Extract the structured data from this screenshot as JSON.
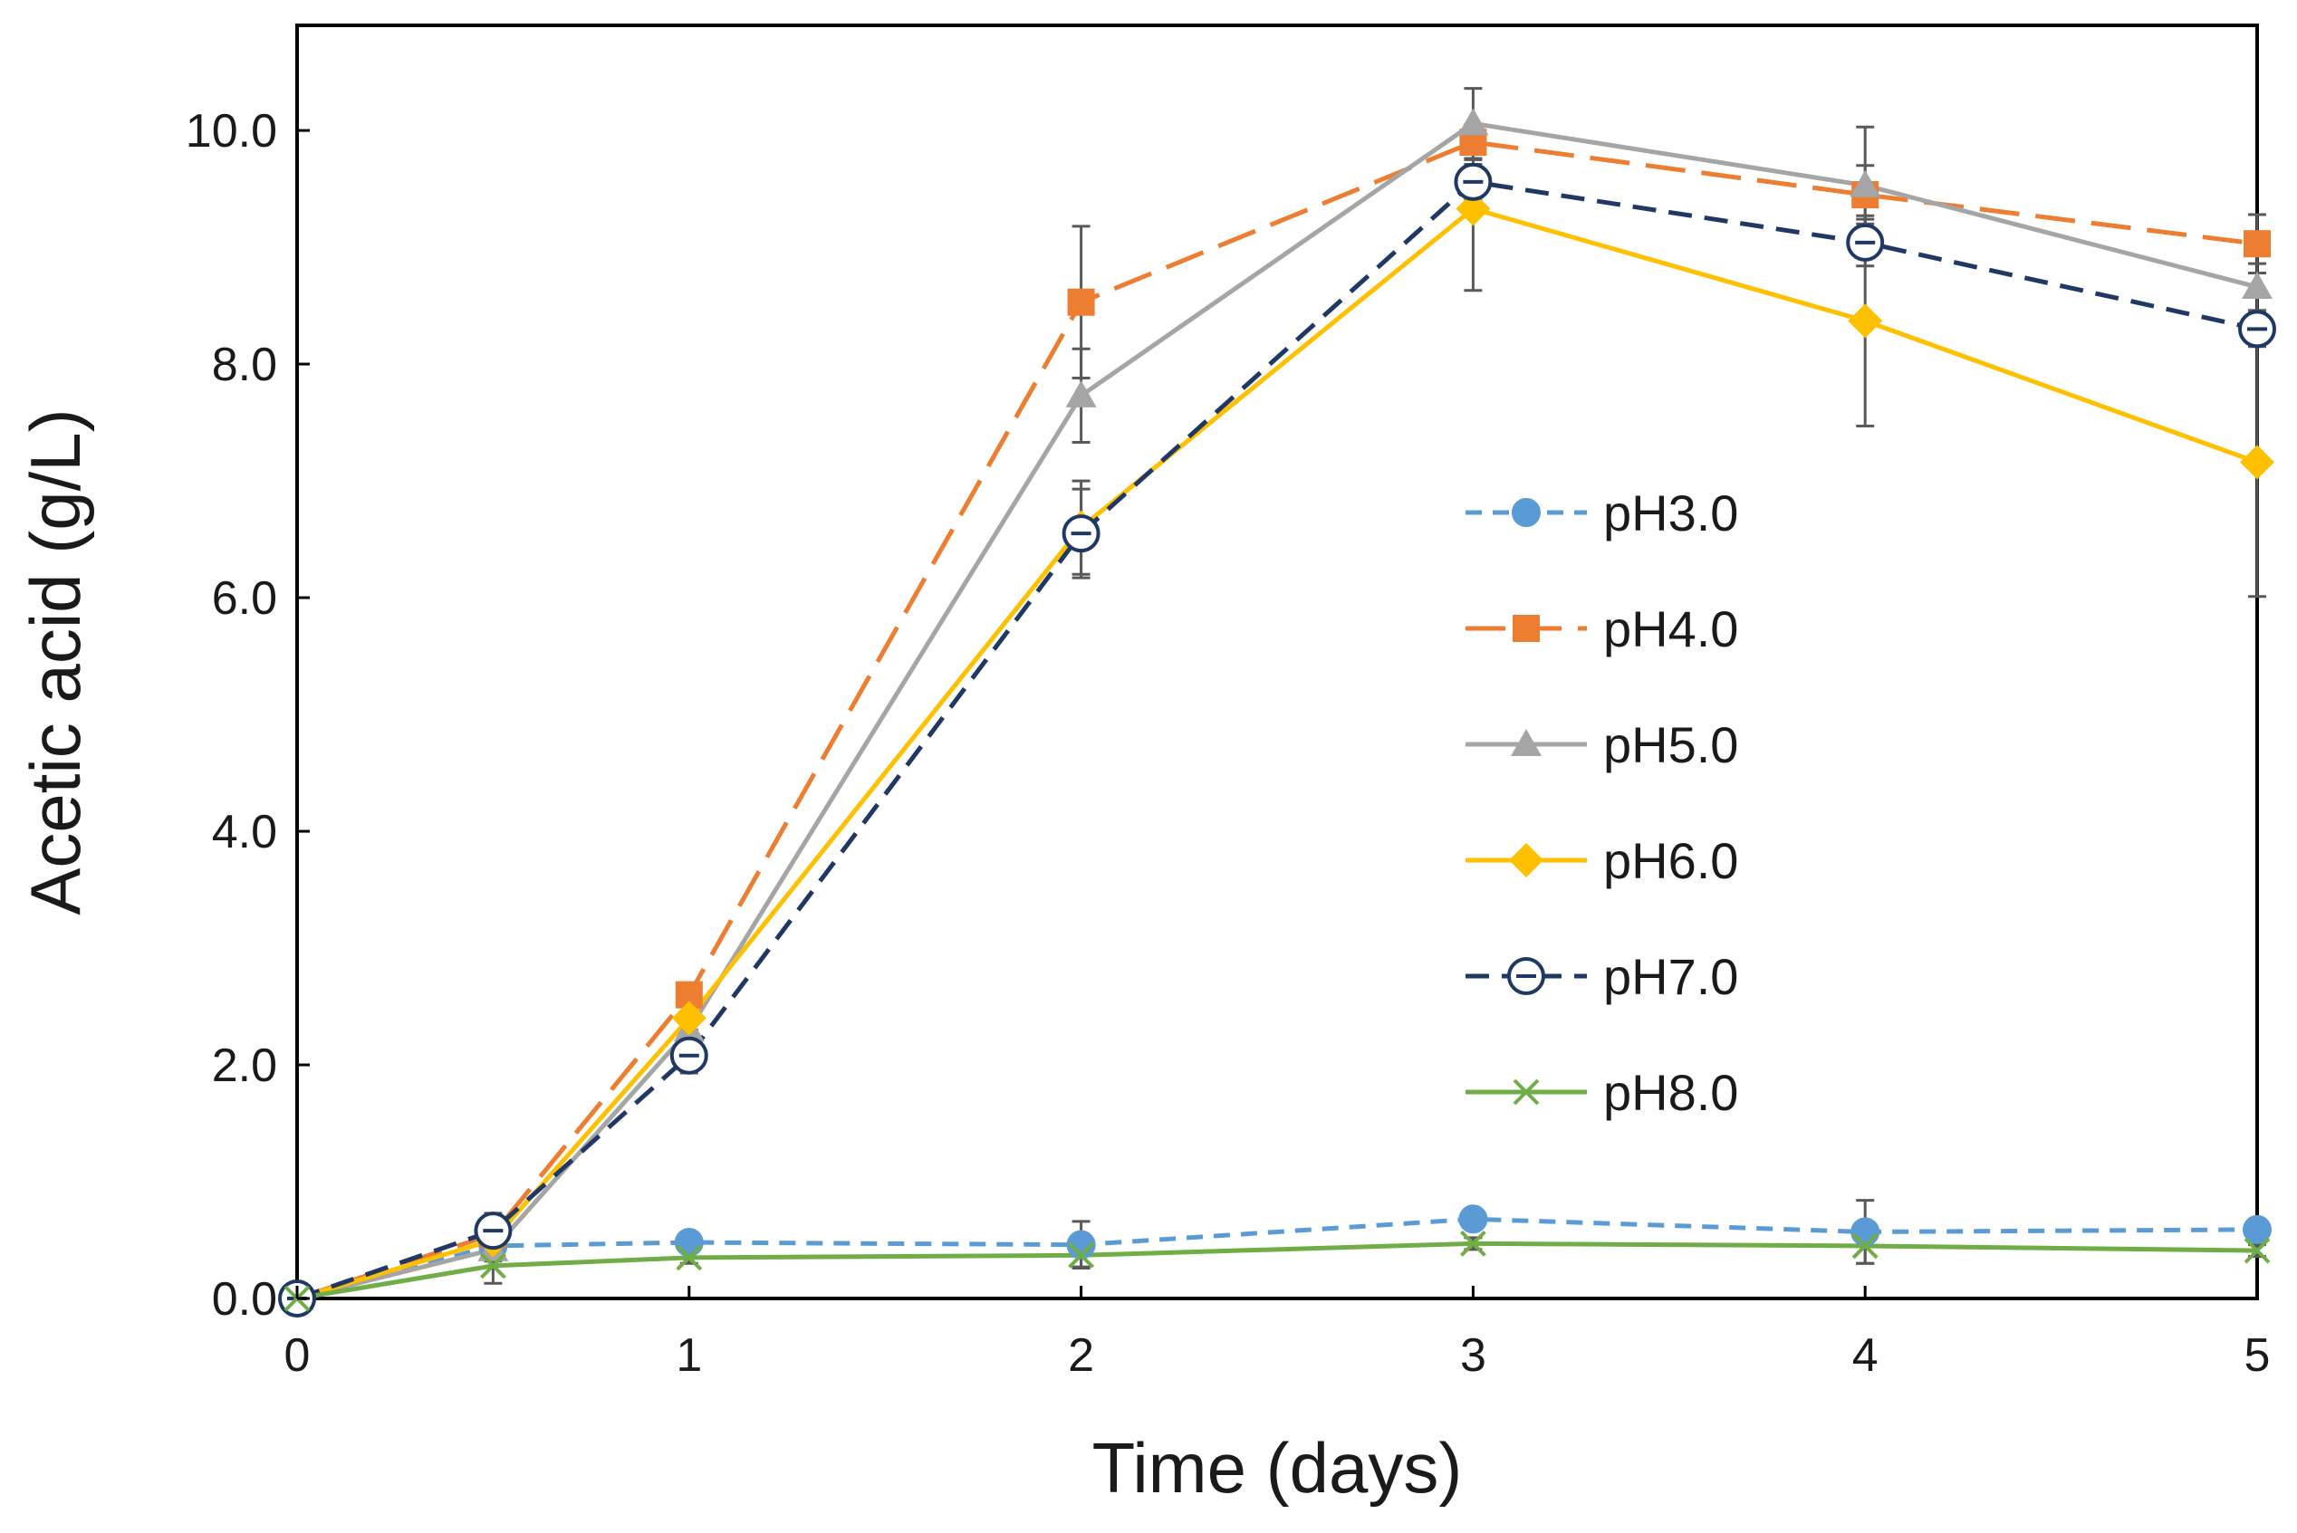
{
  "chart_data": {
    "type": "line",
    "title": "",
    "xlabel": "Time (days)",
    "ylabel": "Acetic acid (g/L)",
    "xlim": [
      0,
      5
    ],
    "ylim": [
      0,
      10.9
    ],
    "xticks": [
      0,
      1,
      2,
      3,
      4,
      5
    ],
    "xtick_labels": [
      "0",
      "1",
      "2",
      "3",
      "4",
      "5"
    ],
    "yticks": [
      0,
      2,
      4,
      6,
      8,
      10
    ],
    "ytick_labels": [
      "0.0",
      "2.0",
      "4.0",
      "6.0",
      "8.0",
      "10.0"
    ],
    "grid": false,
    "legend_position": "center-right",
    "x": [
      0,
      0.5,
      1,
      2,
      3,
      4,
      5
    ],
    "series": [
      {
        "name": "pH3.0",
        "color": "#5b9bd5",
        "line_style": "short-dash",
        "marker": "circle-filled",
        "values": [
          0.0,
          0.45,
          0.48,
          0.46,
          0.68,
          0.57,
          0.59
        ],
        "errors": [
          0.0,
          0.05,
          0.05,
          0.2,
          0.05,
          0.27,
          0.05
        ]
      },
      {
        "name": "pH4.0",
        "color": "#ed7d31",
        "line_style": "long-dash",
        "marker": "square-filled",
        "values": [
          0.0,
          0.55,
          2.6,
          8.53,
          9.9,
          9.45,
          9.03
        ],
        "errors": [
          0.0,
          0.1,
          0.1,
          0.65,
          0.15,
          0.25,
          0.25
        ]
      },
      {
        "name": "pH5.0",
        "color": "#a5a5a5",
        "line_style": "solid",
        "marker": "triangle-filled",
        "values": [
          0.0,
          0.42,
          2.3,
          7.73,
          10.06,
          9.53,
          8.66
        ],
        "errors": [
          0.0,
          0.1,
          0.1,
          0.4,
          0.3,
          0.5,
          0.2
        ]
      },
      {
        "name": "pH6.0",
        "color": "#ffc000",
        "line_style": "solid",
        "marker": "diamond-filled",
        "values": [
          0.0,
          0.5,
          2.4,
          6.6,
          9.33,
          8.37,
          7.16
        ],
        "errors": [
          0.0,
          0.1,
          0.1,
          0.4,
          0.7,
          0.9,
          1.15
        ]
      },
      {
        "name": "pH7.0",
        "color": "#1f3864",
        "line_style": "dash",
        "marker": "circle-open-bar",
        "values": [
          0.0,
          0.58,
          2.08,
          6.55,
          9.56,
          9.04,
          8.3
        ],
        "errors": [
          0.0,
          0.15,
          0.15,
          0.38,
          0.15,
          0.2,
          0.15
        ]
      },
      {
        "name": "pH8.0",
        "color": "#70ad47",
        "line_style": "solid",
        "marker": "x",
        "values": [
          0.0,
          0.28,
          0.35,
          0.37,
          0.47,
          0.45,
          0.41
        ],
        "errors": [
          0.0,
          0.15,
          0.05,
          0.1,
          0.05,
          0.15,
          0.05
        ]
      }
    ]
  }
}
